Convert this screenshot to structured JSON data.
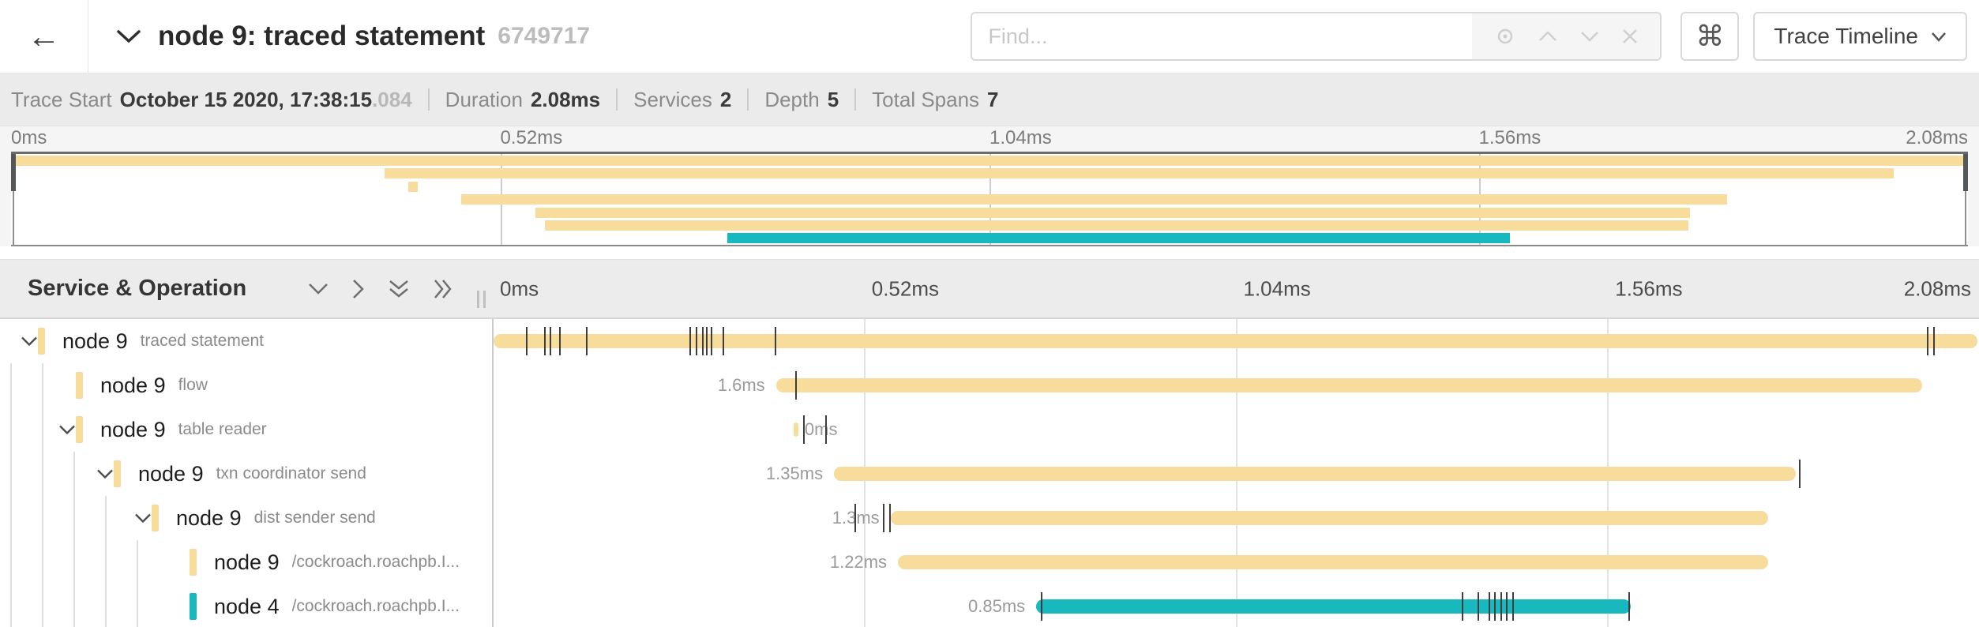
{
  "colors": {
    "tan": "#F8DC9C",
    "teal": "#17B8BE",
    "handle": "#54575A"
  },
  "icons": {
    "back": "←",
    "command": "⌘",
    "locate": "◎",
    "prev-match": "∧",
    "next-match": "∨",
    "clear": "✕",
    "collapse-trace": "∨",
    "collapse-one": "∨",
    "expand-one": "›",
    "collapse-all": "⩔",
    "expand-all": "≫",
    "view-dropdown": "∨",
    "resize-handle": "∥",
    "row-expanded": "∨"
  },
  "header": {
    "title": "node 9: traced statement",
    "trace_id": "6749717",
    "find_placeholder": "Find...",
    "view_selector": "Trace Timeline"
  },
  "summary": {
    "items": [
      {
        "label": "Trace Start",
        "value": "October 15 2020, 17:38:15",
        "suffix": ".084"
      },
      {
        "label": "Duration",
        "value": "2.08ms"
      },
      {
        "label": "Services",
        "value": "2"
      },
      {
        "label": "Depth",
        "value": "5"
      },
      {
        "label": "Total Spans",
        "value": "7"
      }
    ]
  },
  "axis": {
    "ticks": [
      {
        "label": "0ms",
        "pos": 0
      },
      {
        "label": "0.52ms",
        "pos": 25
      },
      {
        "label": "1.04ms",
        "pos": 50
      },
      {
        "label": "1.56ms",
        "pos": 75
      },
      {
        "label": "2.08ms",
        "pos": 100
      }
    ]
  },
  "minimap": {
    "spans": [
      {
        "start": 0,
        "end": 100,
        "color": "tan"
      },
      {
        "start": 19.1,
        "end": 96.2,
        "color": "tan"
      },
      {
        "start": 20.3,
        "end": 20.8,
        "color": "tan"
      },
      {
        "start": 23.0,
        "end": 87.7,
        "color": "tan"
      },
      {
        "start": 26.8,
        "end": 85.8,
        "color": "tan"
      },
      {
        "start": 27.3,
        "end": 85.7,
        "color": "tan"
      },
      {
        "start": 36.6,
        "end": 76.6,
        "color": "teal"
      }
    ]
  },
  "timeline": {
    "left_header": "Service & Operation",
    "rows": [
      {
        "service": "node 9",
        "operation": "traced statement",
        "level": 0,
        "expanded": true,
        "color": "tan",
        "bar_start": 0.1,
        "bar_end": 99.9,
        "duration_label": "",
        "label_side": "none",
        "log_ticks": [
          2.3,
          3.5,
          3.9,
          4.5,
          6.3,
          13.3,
          13.7,
          14.1,
          14.4,
          14.7,
          15.5,
          19.0,
          96.5,
          96.9
        ]
      },
      {
        "service": "node 9",
        "operation": "flow",
        "level": 1,
        "expanded": false,
        "color": "tan",
        "bar_start": 19.1,
        "bar_end": 96.2,
        "duration_label": "1.6ms",
        "label_side": "left",
        "log_ticks": [
          20.4
        ]
      },
      {
        "service": "node 9",
        "operation": "table reader",
        "level": 1,
        "expanded": true,
        "color": "tan",
        "bar_start": 20.3,
        "bar_end": 20.6,
        "duration_label": "0ms",
        "label_side": "right",
        "log_ticks": [
          20.9,
          22.4
        ]
      },
      {
        "service": "node 9",
        "operation": "txn coordinator send",
        "level": 2,
        "expanded": true,
        "color": "tan",
        "bar_start": 23.0,
        "bar_end": 87.7,
        "duration_label": "1.35ms",
        "label_side": "left",
        "log_ticks": [
          87.9
        ]
      },
      {
        "service": "node 9",
        "operation": "dist sender send",
        "level": 3,
        "expanded": true,
        "color": "tan",
        "bar_start": 26.8,
        "bar_end": 85.8,
        "duration_label": "1.3ms",
        "label_side": "left",
        "log_ticks": [
          24.4,
          26.3,
          26.7
        ]
      },
      {
        "service": "node 9",
        "operation": "/cockroach.roachpb.I...",
        "level": 4,
        "expanded": false,
        "color": "tan",
        "bar_start": 27.3,
        "bar_end": 85.8,
        "duration_label": "1.22ms",
        "label_side": "left",
        "log_ticks": []
      },
      {
        "service": "node 4",
        "operation": "/cockroach.roachpb.I...",
        "level": 4,
        "expanded": false,
        "color": "teal",
        "bar_start": 36.6,
        "bar_end": 76.6,
        "duration_label": "0.85ms",
        "label_side": "left",
        "log_ticks": [
          36.9,
          65.2,
          66.3,
          67.0,
          67.4,
          67.8,
          68.2,
          68.6,
          76.4
        ]
      }
    ]
  }
}
